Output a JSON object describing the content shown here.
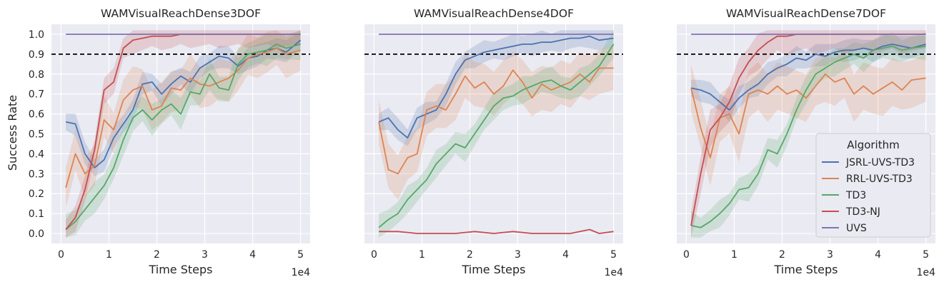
{
  "chart_data": [
    {
      "type": "line",
      "title": "WAMVisualReachDense3DOF",
      "xlabel": "Time Steps",
      "ylabel": "Success Rate",
      "x_scale_label": "1e4",
      "xlim": [
        -0.2,
        5.2
      ],
      "ylim": [
        -0.05,
        1.05
      ],
      "xticks": [
        0,
        1,
        2,
        3,
        4,
        5
      ],
      "yticks": [
        0.0,
        0.1,
        0.2,
        0.3,
        0.4,
        0.5,
        0.6,
        0.7,
        0.8,
        0.9,
        1.0
      ],
      "threshold": 0.9,
      "grid": true,
      "legend": null,
      "series": [
        {
          "name": "JSRL-UVS-TD3",
          "color": "#4c72b0",
          "x": [
            0.1,
            0.3,
            0.5,
            0.7,
            0.9,
            1.1,
            1.3,
            1.5,
            1.7,
            1.9,
            2.1,
            2.3,
            2.5,
            2.7,
            2.9,
            3.1,
            3.3,
            3.5,
            3.7,
            3.9,
            4.1,
            4.3,
            4.5,
            4.7,
            5.0
          ],
          "y": [
            0.56,
            0.55,
            0.4,
            0.33,
            0.37,
            0.48,
            0.55,
            0.62,
            0.75,
            0.76,
            0.7,
            0.75,
            0.79,
            0.76,
            0.83,
            0.86,
            0.89,
            0.88,
            0.84,
            0.88,
            0.89,
            0.92,
            0.93,
            0.91,
            0.97
          ],
          "band": 0.06
        },
        {
          "name": "RRL-UVS-TD3",
          "color": "#dd8452",
          "x": [
            0.1,
            0.3,
            0.5,
            0.7,
            0.9,
            1.1,
            1.3,
            1.5,
            1.7,
            1.9,
            2.1,
            2.3,
            2.5,
            2.7,
            2.9,
            3.1,
            3.3,
            3.5,
            3.7,
            3.9,
            4.1,
            4.3,
            4.5,
            4.7,
            5.0
          ],
          "y": [
            0.23,
            0.4,
            0.3,
            0.34,
            0.57,
            0.52,
            0.67,
            0.72,
            0.74,
            0.62,
            0.64,
            0.73,
            0.72,
            0.78,
            0.75,
            0.74,
            0.76,
            0.78,
            0.82,
            0.88,
            0.9,
            0.91,
            0.93,
            0.9,
            0.92
          ],
          "band": 0.12
        },
        {
          "name": "TD3",
          "color": "#55a868",
          "x": [
            0.1,
            0.3,
            0.5,
            0.7,
            0.9,
            1.1,
            1.3,
            1.5,
            1.7,
            1.9,
            2.1,
            2.3,
            2.5,
            2.7,
            2.9,
            3.1,
            3.3,
            3.5,
            3.7,
            3.9,
            4.1,
            4.3,
            4.5,
            4.7,
            5.0
          ],
          "y": [
            0.02,
            0.06,
            0.12,
            0.18,
            0.24,
            0.33,
            0.47,
            0.58,
            0.62,
            0.57,
            0.62,
            0.65,
            0.6,
            0.71,
            0.7,
            0.8,
            0.73,
            0.72,
            0.85,
            0.9,
            0.91,
            0.92,
            0.95,
            0.93,
            0.95
          ],
          "band": 0.08
        },
        {
          "name": "TD3-NJ",
          "color": "#c44e52",
          "x": [
            0.1,
            0.3,
            0.5,
            0.7,
            0.9,
            1.1,
            1.3,
            1.5,
            1.7,
            1.9,
            2.1,
            2.3,
            2.5,
            2.7,
            2.9,
            3.1,
            3.3,
            3.5,
            3.7,
            3.9,
            4.1,
            4.3,
            4.5,
            4.7,
            5.0
          ],
          "y": [
            0.02,
            0.08,
            0.22,
            0.42,
            0.72,
            0.76,
            0.93,
            0.97,
            0.98,
            0.99,
            0.99,
            0.99,
            1.0,
            1.0,
            1.0,
            1.0,
            1.0,
            1.0,
            1.0,
            1.0,
            1.0,
            1.0,
            1.0,
            1.0,
            1.0
          ],
          "band": 0.07
        },
        {
          "name": "UVS",
          "color": "#8172b3",
          "x": [
            0.1,
            5.0
          ],
          "y": [
            1.0,
            1.0
          ],
          "band": 0
        }
      ]
    },
    {
      "type": "line",
      "title": "WAMVisualReachDense4DOF",
      "xlabel": "Time Steps",
      "ylabel": "",
      "x_scale_label": "1e4",
      "xlim": [
        -0.2,
        5.2
      ],
      "ylim": [
        -0.05,
        1.05
      ],
      "xticks": [
        0,
        1,
        2,
        3,
        4,
        5
      ],
      "yticks": [],
      "threshold": 0.9,
      "grid": true,
      "legend": null,
      "series": [
        {
          "name": "JSRL-UVS-TD3",
          "color": "#4c72b0",
          "x": [
            0.1,
            0.3,
            0.5,
            0.7,
            0.9,
            1.1,
            1.3,
            1.5,
            1.7,
            1.9,
            2.1,
            2.3,
            2.5,
            2.7,
            2.9,
            3.1,
            3.3,
            3.5,
            3.7,
            3.9,
            4.1,
            4.3,
            4.5,
            4.7,
            5.0
          ],
          "y": [
            0.56,
            0.58,
            0.52,
            0.48,
            0.58,
            0.6,
            0.62,
            0.7,
            0.8,
            0.87,
            0.89,
            0.91,
            0.92,
            0.93,
            0.94,
            0.95,
            0.95,
            0.96,
            0.96,
            0.97,
            0.98,
            0.98,
            0.99,
            0.97,
            0.98
          ],
          "band": 0.06
        },
        {
          "name": "RRL-UVS-TD3",
          "color": "#dd8452",
          "x": [
            0.1,
            0.3,
            0.5,
            0.7,
            0.9,
            1.1,
            1.3,
            1.5,
            1.7,
            1.9,
            2.1,
            2.3,
            2.5,
            2.7,
            2.9,
            3.1,
            3.3,
            3.5,
            3.7,
            3.9,
            4.1,
            4.3,
            4.5,
            4.7,
            5.0
          ],
          "y": [
            0.56,
            0.32,
            0.3,
            0.38,
            0.4,
            0.62,
            0.64,
            0.62,
            0.7,
            0.79,
            0.73,
            0.76,
            0.7,
            0.74,
            0.82,
            0.76,
            0.68,
            0.75,
            0.72,
            0.74,
            0.76,
            0.8,
            0.76,
            0.83,
            0.83
          ],
          "band": 0.13
        },
        {
          "name": "TD3",
          "color": "#55a868",
          "x": [
            0.1,
            0.3,
            0.5,
            0.7,
            0.9,
            1.1,
            1.3,
            1.5,
            1.7,
            1.9,
            2.1,
            2.3,
            2.5,
            2.7,
            2.9,
            3.1,
            3.3,
            3.5,
            3.7,
            3.9,
            4.1,
            4.3,
            4.5,
            4.7,
            5.0
          ],
          "y": [
            0.03,
            0.07,
            0.1,
            0.17,
            0.22,
            0.27,
            0.35,
            0.4,
            0.45,
            0.43,
            0.5,
            0.57,
            0.64,
            0.68,
            0.69,
            0.72,
            0.74,
            0.76,
            0.77,
            0.74,
            0.72,
            0.76,
            0.8,
            0.84,
            0.95
          ],
          "band": 0.07
        },
        {
          "name": "TD3-NJ",
          "color": "#c44e52",
          "x": [
            0.1,
            0.5,
            0.9,
            1.3,
            1.7,
            2.1,
            2.5,
            2.9,
            3.3,
            3.7,
            4.1,
            4.5,
            4.7,
            5.0
          ],
          "y": [
            0.01,
            0.01,
            0.0,
            0.0,
            0.0,
            0.01,
            0.0,
            0.01,
            0.0,
            0.0,
            0.0,
            0.02,
            0.0,
            0.01
          ],
          "band": 0
        },
        {
          "name": "UVS",
          "color": "#8172b3",
          "x": [
            0.1,
            5.0
          ],
          "y": [
            1.0,
            1.0
          ],
          "band": 0
        }
      ]
    },
    {
      "type": "line",
      "title": "WAMVisualReachDense7DOF",
      "xlabel": "Time Steps",
      "ylabel": "",
      "x_scale_label": "1e4",
      "xlim": [
        -0.2,
        5.2
      ],
      "ylim": [
        -0.05,
        1.05
      ],
      "xticks": [
        0,
        1,
        2,
        3,
        4,
        5
      ],
      "yticks": [],
      "threshold": 0.9,
      "grid": true,
      "legend": {
        "title": "Algorithm",
        "position": "bottom-right",
        "entries": [
          "JSRL-UVS-TD3",
          "RRL-UVS-TD3",
          "TD3",
          "TD3-NJ",
          "UVS"
        ]
      },
      "series": [
        {
          "name": "JSRL-UVS-TD3",
          "color": "#4c72b0",
          "x": [
            0.1,
            0.3,
            0.5,
            0.7,
            0.9,
            1.1,
            1.3,
            1.5,
            1.7,
            1.9,
            2.1,
            2.3,
            2.5,
            2.7,
            2.9,
            3.1,
            3.3,
            3.5,
            3.7,
            3.9,
            4.1,
            4.3,
            4.5,
            4.7,
            5.0
          ],
          "y": [
            0.73,
            0.72,
            0.7,
            0.66,
            0.62,
            0.68,
            0.72,
            0.75,
            0.8,
            0.83,
            0.85,
            0.88,
            0.87,
            0.9,
            0.89,
            0.91,
            0.92,
            0.92,
            0.93,
            0.92,
            0.94,
            0.95,
            0.94,
            0.93,
            0.95
          ],
          "band": 0.06
        },
        {
          "name": "RRL-UVS-TD3",
          "color": "#dd8452",
          "x": [
            0.1,
            0.3,
            0.5,
            0.7,
            0.9,
            1.1,
            1.3,
            1.5,
            1.7,
            1.9,
            2.1,
            2.3,
            2.5,
            2.7,
            2.9,
            3.1,
            3.3,
            3.5,
            3.7,
            3.9,
            4.1,
            4.3,
            4.5,
            4.7,
            5.0
          ],
          "y": [
            0.73,
            0.53,
            0.38,
            0.58,
            0.6,
            0.5,
            0.7,
            0.72,
            0.7,
            0.74,
            0.7,
            0.72,
            0.68,
            0.74,
            0.8,
            0.76,
            0.78,
            0.7,
            0.74,
            0.7,
            0.73,
            0.76,
            0.72,
            0.77,
            0.78
          ],
          "band": 0.14
        },
        {
          "name": "TD3",
          "color": "#55a868",
          "x": [
            0.1,
            0.3,
            0.5,
            0.7,
            0.9,
            1.1,
            1.3,
            1.5,
            1.7,
            1.9,
            2.1,
            2.3,
            2.5,
            2.7,
            2.9,
            3.1,
            3.3,
            3.5,
            3.7,
            3.9,
            4.1,
            4.3,
            4.5,
            4.7,
            5.0
          ],
          "y": [
            0.04,
            0.03,
            0.06,
            0.1,
            0.15,
            0.22,
            0.23,
            0.3,
            0.42,
            0.4,
            0.5,
            0.62,
            0.72,
            0.8,
            0.83,
            0.86,
            0.88,
            0.9,
            0.88,
            0.92,
            0.93,
            0.94,
            0.92,
            0.93,
            0.94
          ],
          "band": 0.07
        },
        {
          "name": "TD3-NJ",
          "color": "#c44e52",
          "x": [
            0.1,
            0.3,
            0.5,
            0.7,
            0.9,
            1.1,
            1.3,
            1.5,
            1.7,
            1.9,
            2.1,
            2.3,
            2.5,
            2.7,
            2.9,
            3.1,
            3.3,
            3.5,
            3.7,
            3.9,
            4.1,
            4.3,
            4.5,
            4.7,
            5.0
          ],
          "y": [
            0.04,
            0.3,
            0.52,
            0.58,
            0.66,
            0.78,
            0.86,
            0.92,
            0.96,
            0.99,
            0.99,
            1.0,
            1.0,
            1.0,
            1.0,
            1.0,
            1.0,
            1.0,
            1.0,
            1.0,
            1.0,
            1.0,
            1.0,
            1.0,
            1.0
          ],
          "band": 0.1
        },
        {
          "name": "UVS",
          "color": "#8172b3",
          "x": [
            0.1,
            5.0
          ],
          "y": [
            1.0,
            1.0
          ],
          "band": 0
        }
      ]
    }
  ]
}
